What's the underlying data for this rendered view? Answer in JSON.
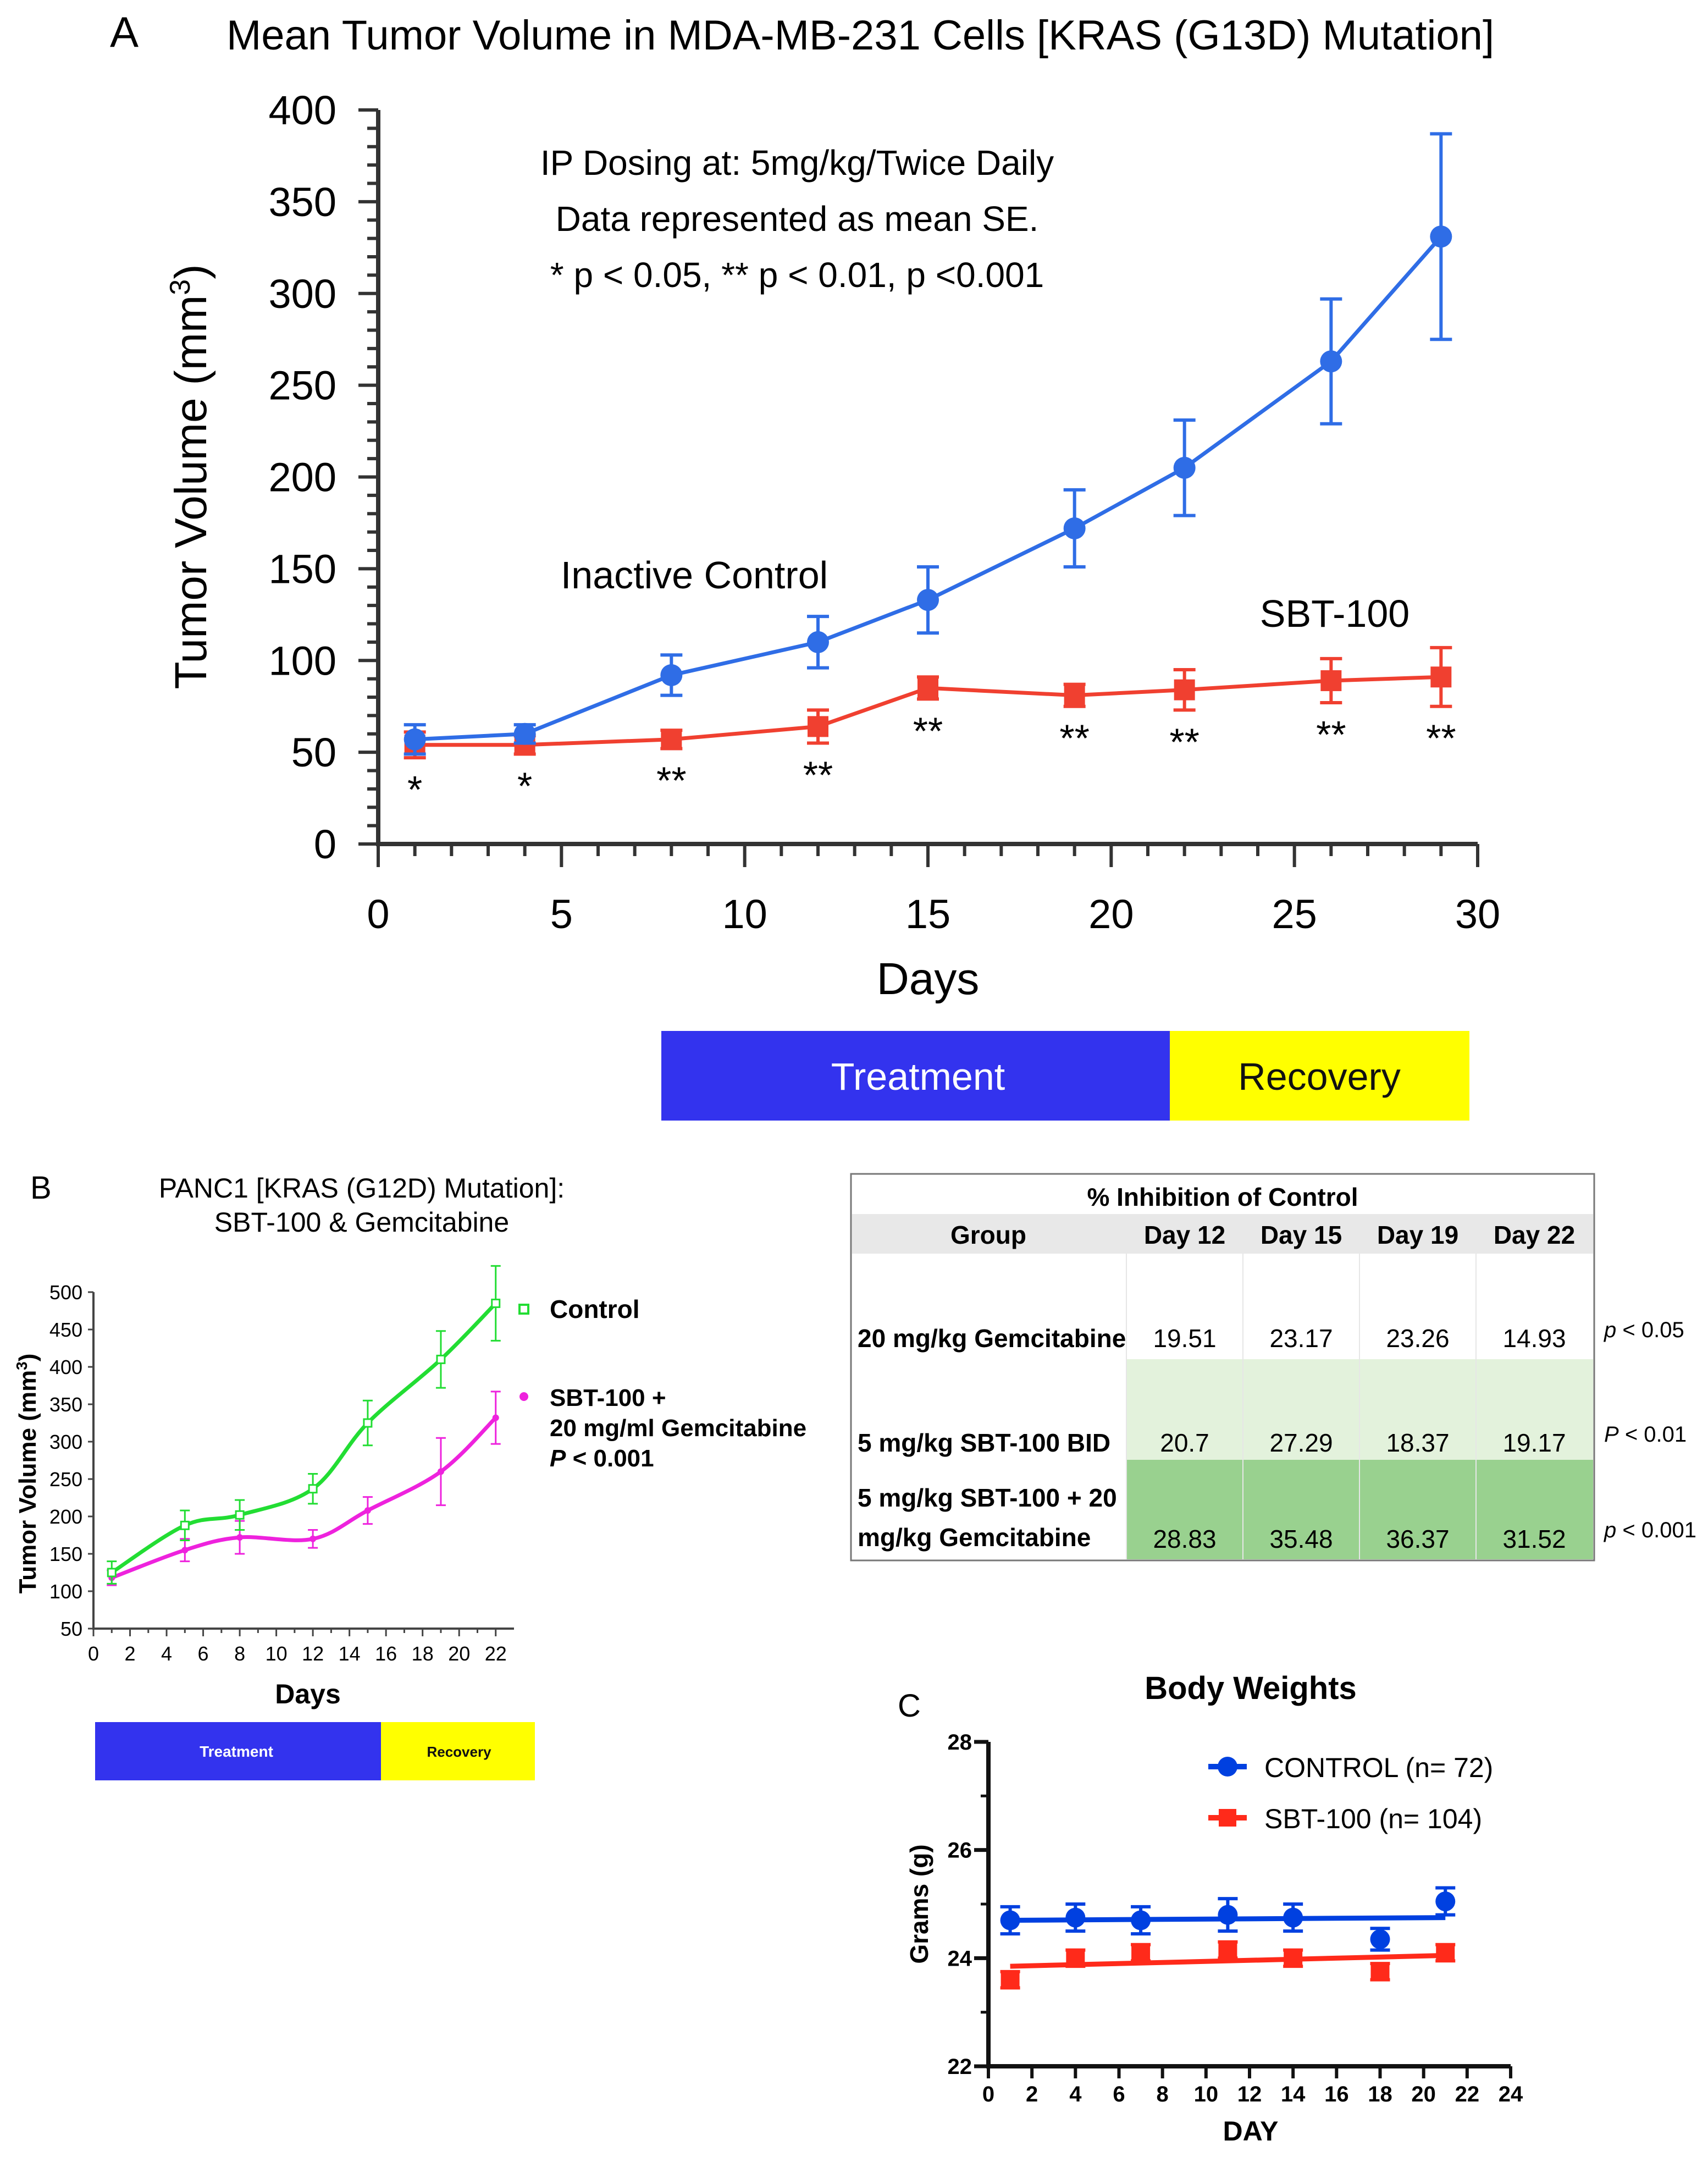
{
  "colors": {
    "control_blue": "#2f6de6",
    "sbt_red": "#f04030",
    "panel_b_control": "#22dd33",
    "panel_b_combo": "#ee22dd",
    "treatment_bar": "#3333ee",
    "recovery_bar": "#ffff00",
    "table_light_green": "#e3f2dc",
    "table_dark_green": "#99d18f",
    "table_header_bg": "#e8e8e8",
    "panel_c_blue": "#0040e0",
    "panel_c_red": "#ff2a1a"
  },
  "chart_data": [
    {
      "panel": "A",
      "type": "line",
      "title": "Mean Tumor Volume in MDA-MB-231 Cells [KRAS (G13D) Mutation]",
      "xlabel": "Days",
      "ylabel_main": "Tumor Volume (mm",
      "ylabel_sup": "3",
      "ylabel_end": ")",
      "xlim": [
        0,
        30
      ],
      "ylim": [
        0,
        400
      ],
      "xticks": [
        "0",
        "5",
        "10",
        "15",
        "20",
        "25",
        "30"
      ],
      "yticks": [
        "0",
        "50",
        "100",
        "150",
        "200",
        "250",
        "300",
        "350",
        "400"
      ],
      "annotations": [
        "IP Dosing at: 5mg/kg/Twice Daily",
        "Data represented as mean SE.",
        "* p < 0.05, ** p < 0.01, p <0.001"
      ],
      "series": [
        {
          "name": "Inactive Control",
          "x": [
            1,
            4,
            8,
            12,
            15,
            19,
            22,
            26,
            29
          ],
          "y": [
            57,
            60,
            92,
            110,
            133,
            172,
            205,
            263,
            331
          ],
          "err": [
            8,
            5,
            11,
            14,
            18,
            21,
            26,
            34,
            56
          ]
        },
        {
          "name": "SBT-100",
          "x": [
            1,
            4,
            8,
            12,
            15,
            19,
            22,
            26,
            29
          ],
          "y": [
            54,
            54,
            57,
            64,
            85,
            81,
            84,
            89,
            91
          ],
          "err": [
            7,
            5,
            5,
            9,
            6,
            6,
            11,
            12,
            16
          ]
        }
      ],
      "significance": [
        "*",
        "*",
        "**",
        "**",
        "**",
        "**",
        "**",
        "**",
        "**"
      ],
      "phases": [
        "Treatment",
        "Recovery"
      ]
    },
    {
      "panel": "B",
      "type": "line",
      "title_line1": "PANC1 [KRAS (G12D) Mutation]:",
      "title_line2": "SBT-100 & Gemcitabine",
      "xlabel": "Days",
      "ylabel_main": "Tumor Volume (mm",
      "ylabel_sup": "3",
      "ylabel_end": ")",
      "xlim": [
        0,
        23
      ],
      "ylim": [
        50,
        500
      ],
      "xticks": [
        "0",
        "2",
        "4",
        "6",
        "8",
        "10",
        "12",
        "14",
        "16",
        "18",
        "20",
        "22"
      ],
      "yticks": [
        "50",
        "100",
        "150",
        "200",
        "250",
        "300",
        "350",
        "400",
        "450",
        "500"
      ],
      "series": [
        {
          "name": "Control",
          "x": [
            1,
            5,
            8,
            12,
            15,
            19,
            22
          ],
          "y": [
            125,
            188,
            202,
            237,
            325,
            410,
            485
          ],
          "err": [
            15,
            20,
            20,
            20,
            30,
            38,
            50
          ]
        },
        {
          "name_line1": "SBT-100 +",
          "name_line2": "20 mg/ml Gemcitabine",
          "x": [
            1,
            5,
            8,
            12,
            15,
            19,
            22
          ],
          "y": [
            118,
            155,
            172,
            170,
            208,
            260,
            332
          ],
          "err": [
            10,
            15,
            22,
            12,
            18,
            45,
            35
          ]
        }
      ],
      "pvalue_label": "P",
      "pvalue_value": "< 0.001",
      "phases": [
        "Treatment",
        "Recovery"
      ]
    },
    {
      "panel": "B-table",
      "type": "table",
      "title": "% Inhibition of Control",
      "columns": [
        "Group",
        "Day 12",
        "Day 15",
        "Day 19",
        "Day 22"
      ],
      "rows": [
        {
          "group_line1": "20 mg/kg Gemcitabine",
          "group_line2": "",
          "values": [
            "19.51",
            "23.17",
            "23.26",
            "14.93"
          ],
          "p_label": "p",
          "p_value": "< 0.05"
        },
        {
          "group_line1": "5 mg/kg SBT-100 BID",
          "group_line2": "",
          "values": [
            "20.7",
            "27.29",
            "18.37",
            "19.17"
          ],
          "p_label": "P",
          "p_value": "< 0.01"
        },
        {
          "group_line1": "5 mg/kg SBT-100 + 20",
          "group_line2": "mg/kg Gemcitabine",
          "values": [
            "28.83",
            "35.48",
            "36.37",
            "31.52"
          ],
          "p_label": "p",
          "p_value": "< 0.001"
        }
      ]
    },
    {
      "panel": "C",
      "type": "line",
      "title": "Body Weights",
      "xlabel": "DAY",
      "ylabel": "Grams (g)",
      "xlim": [
        0,
        24
      ],
      "ylim": [
        22,
        28
      ],
      "xticks": [
        "0",
        "2",
        "4",
        "6",
        "8",
        "10",
        "12",
        "14",
        "16",
        "18",
        "20",
        "22",
        "24"
      ],
      "yticks": [
        "22",
        "24",
        "26",
        "28"
      ],
      "series": [
        {
          "name": "CONTROL",
          "n_label": "(n= 72)",
          "x": [
            1,
            4,
            7,
            11,
            14,
            18,
            21
          ],
          "y": [
            24.7,
            24.75,
            24.7,
            24.8,
            24.75,
            24.35,
            25.05
          ],
          "err": [
            0.25,
            0.25,
            0.25,
            0.3,
            0.25,
            0.2,
            0.25
          ],
          "fit": [
            24.7,
            24.75
          ]
        },
        {
          "name": "SBT-100",
          "n_label": "(n= 104)",
          "x": [
            1,
            4,
            7,
            11,
            14,
            18,
            21
          ],
          "y": [
            23.6,
            24.0,
            24.1,
            24.15,
            24.0,
            23.75,
            24.1
          ],
          "err": [
            0.15,
            0.15,
            0.15,
            0.15,
            0.15,
            0.15,
            0.15
          ],
          "fit": [
            23.85,
            24.05
          ]
        }
      ]
    }
  ]
}
